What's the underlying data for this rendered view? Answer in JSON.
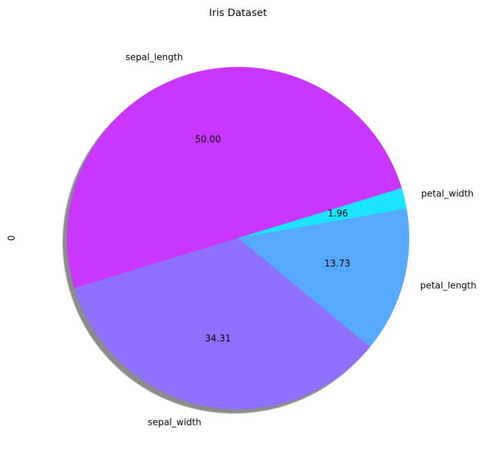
{
  "chart_data": {
    "type": "pie",
    "title": "Iris Dataset",
    "ylabel": "0",
    "categories": [
      "sepal_length",
      "sepal_width",
      "petal_length",
      "petal_width"
    ],
    "values": [
      50.0,
      34.31,
      13.73,
      1.96
    ],
    "value_labels": [
      "50.00",
      "34.31",
      "13.73",
      "1.96"
    ],
    "colors": [
      "#c836ff",
      "#8f70ff",
      "#57a8ff",
      "#1ae4ff"
    ],
    "shadow": true,
    "legend": "none"
  }
}
